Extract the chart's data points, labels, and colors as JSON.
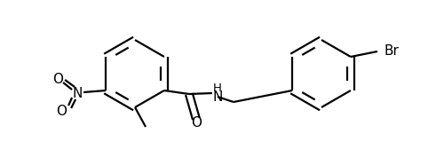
{
  "background_color": "#ffffff",
  "line_color": "#000000",
  "line_width": 1.6,
  "font_size": 10,
  "fig_width": 5.0,
  "fig_height": 1.77,
  "dpi": 100,
  "xlim": [
    0.0,
    5.0
  ],
  "ylim": [
    0.0,
    1.77
  ]
}
